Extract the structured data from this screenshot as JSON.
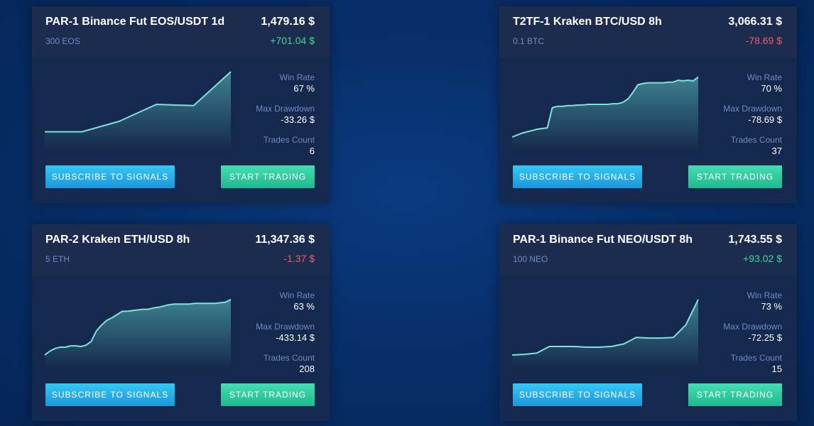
{
  "labels": {
    "win_rate": "Win Rate",
    "max_drawdown": "Max Drawdown",
    "trades_count": "Trades Count",
    "subscribe": "SUBSCRIBE TO SIGNALS",
    "start_trading": "START TRADING"
  },
  "colors": {
    "positive": "#3fd796",
    "negative": "#f35b63",
    "equity_line": "#7ee3d8",
    "subscribe_button": "#25aee6",
    "trade_button": "#30cba0"
  },
  "cards": [
    {
      "title": "PAR-1 Binance Fut EOS/USDT 1d",
      "price": "1,479.16 $",
      "quantity": "300 EOS",
      "change": "+701.04 $",
      "change_sign": "positive",
      "win_rate": "67 %",
      "max_drawdown": "-33.26 $",
      "trades_count": "6",
      "equity_curve": [
        0.08,
        0.08,
        0.24,
        0.5,
        0.48,
        1.0
      ]
    },
    {
      "title": "T2TF-1 Kraken BTC/USD 8h",
      "price": "3,066.31 $",
      "quantity": "0.1 BTC",
      "change": "-78.69 $",
      "change_sign": "negative",
      "win_rate": "70 %",
      "max_drawdown": "-78.69 $",
      "trades_count": "37",
      "equity_curve": [
        0.0,
        0.03,
        0.06,
        0.08,
        0.1,
        0.12,
        0.13,
        0.14,
        0.45,
        0.47,
        0.47,
        0.48,
        0.48,
        0.49,
        0.49,
        0.5,
        0.5,
        0.5,
        0.5,
        0.5,
        0.51,
        0.51,
        0.53,
        0.58,
        0.68,
        0.8,
        0.82,
        0.83,
        0.83,
        0.83,
        0.83,
        0.84,
        0.84,
        0.87,
        0.86,
        0.87,
        0.86,
        0.92
      ]
    },
    {
      "title": "PAR-2 Kraken ETH/USD 8h",
      "price": "11,347.36 $",
      "quantity": "5 ETH",
      "change": "-1.37 $",
      "change_sign": "negative",
      "win_rate": "63 %",
      "max_drawdown": "-433.14 $",
      "trades_count": "208",
      "equity_curve": [
        0.0,
        0.06,
        0.1,
        0.12,
        0.12,
        0.14,
        0.14,
        0.13,
        0.15,
        0.21,
        0.37,
        0.46,
        0.53,
        0.57,
        0.62,
        0.67,
        0.67,
        0.68,
        0.69,
        0.7,
        0.7,
        0.72,
        0.73,
        0.75,
        0.77,
        0.78,
        0.78,
        0.78,
        0.78,
        0.79,
        0.79,
        0.79,
        0.79,
        0.79,
        0.8,
        0.81,
        0.85
      ]
    },
    {
      "title": "PAR-1 Binance Fut NEO/USDT 8h",
      "price": "1,743.55 $",
      "quantity": "100 NEO",
      "change": "+93.02 $",
      "change_sign": "positive",
      "win_rate": "73 %",
      "max_drawdown": "-72.25 $",
      "trades_count": "15",
      "equity_curve": [
        0.0,
        0.01,
        0.03,
        0.13,
        0.13,
        0.13,
        0.12,
        0.12,
        0.13,
        0.17,
        0.27,
        0.26,
        0.26,
        0.27,
        0.46,
        0.85
      ]
    }
  ]
}
